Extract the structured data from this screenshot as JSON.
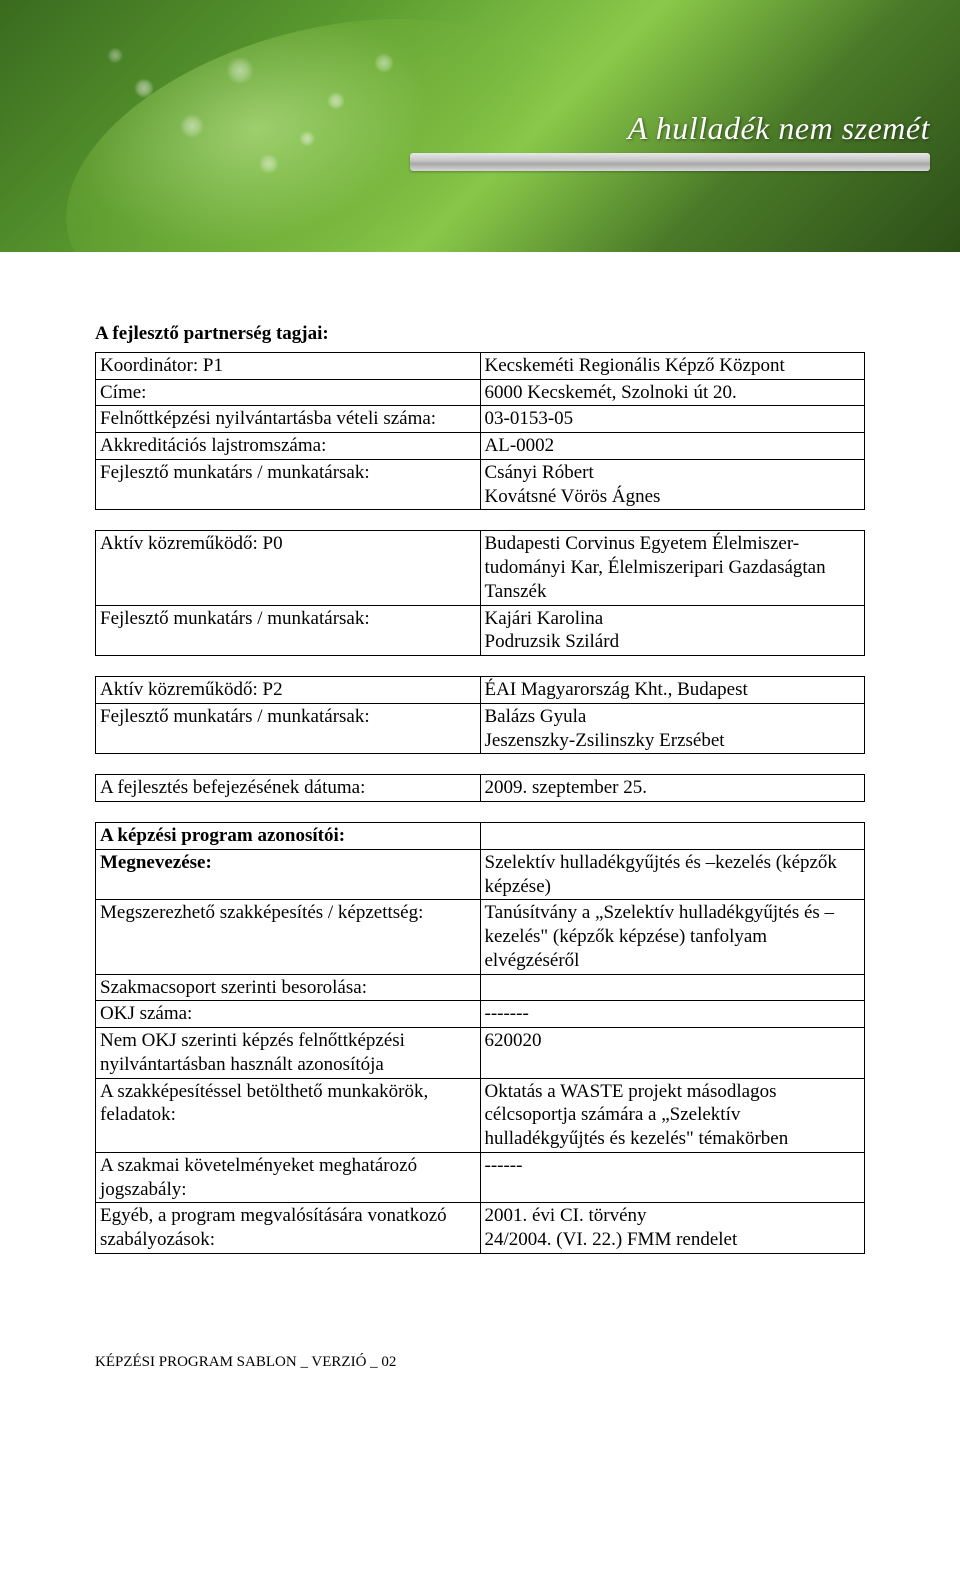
{
  "banner": {
    "title": "A hulladék nem szemét"
  },
  "section1_title": "A fejlesztő partnerség tagjai:",
  "t1": {
    "r0k": "Koordinátor: P1",
    "r0v": "Kecskeméti Regionális Képző Központ",
    "r1k": "Címe:",
    "r1v": "6000 Kecskemét, Szolnoki út 20.",
    "r2k": "Felnőttképzési nyilvántartásba vételi száma:",
    "r2v": "03-0153-05",
    "r3k": "Akkreditációs lajstromszáma:",
    "r3v": "AL-0002",
    "r4k": "Fejlesztő munkatárs / munkatársak:",
    "r4v": "Csányi Róbert\nKovátsné Vörös Ágnes"
  },
  "t2": {
    "r0k": "Aktív közreműködő: P0",
    "r0v": "Budapesti Corvinus Egyetem Élelmiszer-tudományi Kar, Élelmiszeripari Gazdaságtan Tanszék",
    "r1k": "Fejlesztő munkatárs / munkatársak:",
    "r1v": "Kajári Karolina\nPodruzsik Szilárd"
  },
  "t3": {
    "r0k": "Aktív közreműködő: P2",
    "r0v": "ÉAI Magyarország Kht., Budapest",
    "r1k": "Fejlesztő munkatárs / munkatársak:",
    "r1v": "Balázs Gyula\nJeszenszky-Zsilinszky Erzsébet"
  },
  "t4": {
    "r0k": "A fejlesztés befejezésének dátuma:",
    "r0v": "2009. szeptember 25."
  },
  "section2_title": "A képzési program azonosítói:",
  "t5": {
    "r0k": "Megnevezése:",
    "r0v": "Szelektív hulladékgyűjtés és –kezelés (képzők képzése)",
    "r1k": "Megszerezhető szakképesítés / képzettség:",
    "r1v": "Tanúsítvány a „Szelektív hulladékgyűjtés és – kezelés\" (képzők képzése) tanfolyam elvégzéséről",
    "r2k": "Szakmacsoport szerinti besorolása:",
    "r2v": "",
    "r3k": "OKJ száma:",
    "r3v": "-------",
    "r4k": "Nem OKJ szerinti képzés felnőttképzési nyilvántartásban használt azonosítója",
    "r4v": "620020",
    "r5k": "A szakképesítéssel betölthető munkakörök, feladatok:",
    "r5v": "Oktatás a WASTE projekt másodlagos célcsoportja számára a „Szelektív hulladékgyűjtés és kezelés\" témakörben",
    "r6k": "A szakmai követelményeket meghatározó jogszabály:",
    "r6v": "------",
    "r7k": "Egyéb, a program megvalósítására vonatkozó szabályozások:",
    "r7v": "2001. évi CI. törvény\n24/2004. (VI. 22.) FMM rendelet"
  },
  "footer": "KÉPZÉSI PROGRAM SABLON _ VERZIÓ _ 02"
}
